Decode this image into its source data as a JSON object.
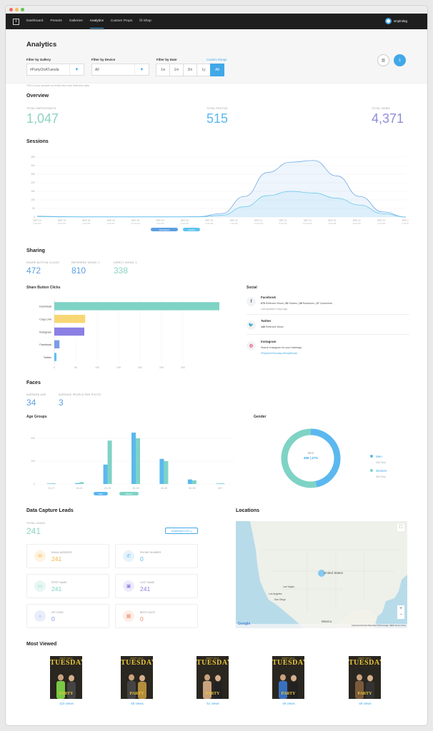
{
  "nav": {
    "items": [
      "Dashboard",
      "Presets",
      "Galleries",
      "Analytics",
      "Custom Props",
      "Shop"
    ],
    "active": "Analytics",
    "user": "smplmktg"
  },
  "header": {
    "title": "Analytics",
    "filter_gallery_label": "Filter by Gallery",
    "filter_gallery_value": "#PartyOnATuesda",
    "filter_device_label": "Filter by Device",
    "filter_device_value": "All",
    "filter_date_label": "Filter by Date",
    "custom_range": "Custom Range",
    "date_options": [
      "1w",
      "1m",
      "3m",
      "1y",
      "All"
    ],
    "date_selected": "All"
  },
  "note": "78% of your uploads currently have face detection data",
  "overview": {
    "title": "Overview",
    "participants_label": "Total Participants",
    "participants": "1,047",
    "photos_label": "Total Photos",
    "photos": "515",
    "views_label": "Total Views",
    "views": "4,371"
  },
  "sessions": {
    "title": "Sessions",
    "legend": [
      "Participants",
      "Uploads"
    ]
  },
  "sessions_chart": {
    "type": "area",
    "y_ticks": [
      "350",
      "300",
      "250",
      "200",
      "150",
      "100",
      "50",
      "0"
    ],
    "ylim": [
      0,
      350
    ],
    "x_labels": [
      [
        "SEP 19",
        "3:00 PM"
      ],
      [
        "SEP 19",
        "8:00 PM"
      ],
      [
        "SEP 20",
        "1:00 AM"
      ],
      [
        "SEP 20",
        "6:00 AM"
      ],
      [
        "SEP 20",
        "11:00 AM"
      ],
      [
        "SEP 20",
        "4:00 PM"
      ],
      [
        "SEP 20",
        "9:00 PM"
      ],
      [
        "SEP 21",
        "2:00 AM"
      ],
      [
        "SEP 21",
        "7:00 AM"
      ],
      [
        "SEP 21",
        "12:00 PM"
      ],
      [
        "SEP 21",
        "5:00 PM"
      ],
      [
        "SEP 21",
        "10:00 PM"
      ],
      [
        "SEP 22",
        "3:00 AM"
      ],
      [
        "SEP 22",
        "8:00 AM"
      ],
      [
        "SEP 22",
        "1:00 PM"
      ],
      [
        "SEP 22",
        "6:00 PM"
      ]
    ],
    "series": [
      {
        "name": "Participants",
        "values": [
          5,
          2,
          1,
          1,
          1,
          1,
          1,
          2,
          20,
          120,
          260,
          320,
          330,
          240,
          120,
          30,
          0
        ]
      },
      {
        "name": "Uploads",
        "values": [
          3,
          1,
          1,
          1,
          1,
          1,
          1,
          1,
          10,
          60,
          125,
          150,
          140,
          110,
          70,
          20,
          0
        ]
      }
    ]
  },
  "sharing": {
    "title": "Sharing",
    "share_clicks_label": "Share Button Clicks",
    "share_clicks": "472",
    "referred_label": "Referred Views",
    "referred": "810",
    "direct_label": "Direct Views",
    "direct": "338",
    "chart_title": "Share Button Clicks",
    "social_title": "Social"
  },
  "share_chart": {
    "type": "bar",
    "orientation": "horizontal",
    "categories": [
      "Download",
      "Copy Link",
      "Instagram",
      "Facebook",
      "Twitter"
    ],
    "values": [
      385,
      72,
      70,
      12,
      5
    ],
    "x_ticks": [
      "0",
      "50",
      "100",
      "150",
      "200",
      "250",
      "300"
    ],
    "xlim": [
      0,
      400
    ],
    "colors": [
      "#7ed3c5",
      "#f7d774",
      "#8b7fe4",
      "#7d9ce8",
      "#5bc3ef"
    ]
  },
  "social": {
    "facebook": {
      "name": "Facebook",
      "referred": "670",
      "referred_label": "Referred Views",
      "shares": "52",
      "shares_label": "Shares",
      "reactions": "28",
      "reactions_label": "Reactions",
      "comments": "27",
      "comments_label": "Comments",
      "updated": "Last updated 3 days ago"
    },
    "twitter": {
      "name": "Twitter",
      "referred": "140",
      "referred_label": "Referred Views"
    },
    "instagram": {
      "name": "Instagram",
      "line": "Search Instagram for your hashtags",
      "tags": "#PartyOnATuesday  #SimpleBooth"
    }
  },
  "faces": {
    "title": "Faces",
    "avg_age_label": "Average Age",
    "avg_age": "34",
    "avg_people_label": "Average People Per Photo",
    "avg_people": "3",
    "age_title": "Age Groups",
    "gender_title": "Gender",
    "age_legend": [
      "Men",
      "Women"
    ]
  },
  "age_chart": {
    "type": "bar",
    "categories": [
      "13-17",
      "18-21",
      "22-29",
      "30-39",
      "40-49",
      "50-59",
      "60+"
    ],
    "y_ticks": [
      "200",
      "100",
      "0"
    ],
    "ylim": [
      0,
      250
    ],
    "series": [
      {
        "name": "Men",
        "values": [
          2,
          4,
          85,
          225,
          110,
          20,
          2
        ]
      },
      {
        "name": "Women",
        "values": [
          3,
          8,
          190,
          200,
          100,
          16,
          3
        ]
      }
    ]
  },
  "gender_chart": {
    "type": "pie",
    "center_label": "Men",
    "center_value": "488",
    "center_pct": "47%",
    "slices": [
      {
        "name": "Men",
        "value": 488,
        "sub": "488 Total",
        "color": "#5bb8ef"
      },
      {
        "name": "Women",
        "value": 554,
        "sub": "554 Total",
        "color": "#7ed3c5"
      }
    ]
  },
  "leads": {
    "title": "Data Capture Leads",
    "total_label": "Total Leads",
    "total": "241",
    "download": "Download CSV",
    "cards": [
      {
        "label": "Email Address",
        "value": "241",
        "color": "#f3b547",
        "bg": "#fdf3df"
      },
      {
        "label": "Phone Number",
        "value": "0",
        "color": "#5bb8ef",
        "bg": "#e6f3fc"
      },
      {
        "label": "First Name",
        "value": "241",
        "color": "#7ed3c5",
        "bg": "#e7f7f3"
      },
      {
        "label": "Last Name",
        "value": "241",
        "color": "#8b7fe4",
        "bg": "#eeecfb"
      },
      {
        "label": "Zip Code",
        "value": "0",
        "color": "#7d9ce8",
        "bg": "#e9eefb"
      },
      {
        "label": "Birth Date",
        "value": "0",
        "color": "#ef8f6f",
        "bg": "#fdeee8"
      }
    ]
  },
  "locations": {
    "title": "Locations",
    "map_labels": [
      "United States",
      "Las Vegas",
      "Los Angeles",
      "San Diego",
      "Mexico"
    ],
    "attribution": "Keyboard shortcuts   Map data ©2023 Google, INEGI   Terms of Use",
    "google": "Google"
  },
  "most_viewed": {
    "title": "Most Viewed",
    "items": [
      {
        "views": "110 views",
        "top": "PARTY ON A",
        "big": "TUESDAY",
        "bottom": "PARTY"
      },
      {
        "views": "55 views",
        "top": "PARTY ON A",
        "big": "TUESDAY",
        "bottom": "PARTY"
      },
      {
        "views": "51 views",
        "top": "PARTY ON A",
        "big": "TUESDAY",
        "bottom": "PARTY"
      },
      {
        "views": "49 views",
        "top": "PARTY ON A",
        "big": "TUESDAY",
        "bottom": "PARTY"
      },
      {
        "views": "48 views",
        "top": "PARTY ON A",
        "big": "TUESDAY",
        "bottom": "PARTY"
      }
    ]
  },
  "colors": {
    "accent": "#41a8e8",
    "teal": "#8cd3c2",
    "blue": "#5b9fe0",
    "purple": "#8b8fd8"
  }
}
